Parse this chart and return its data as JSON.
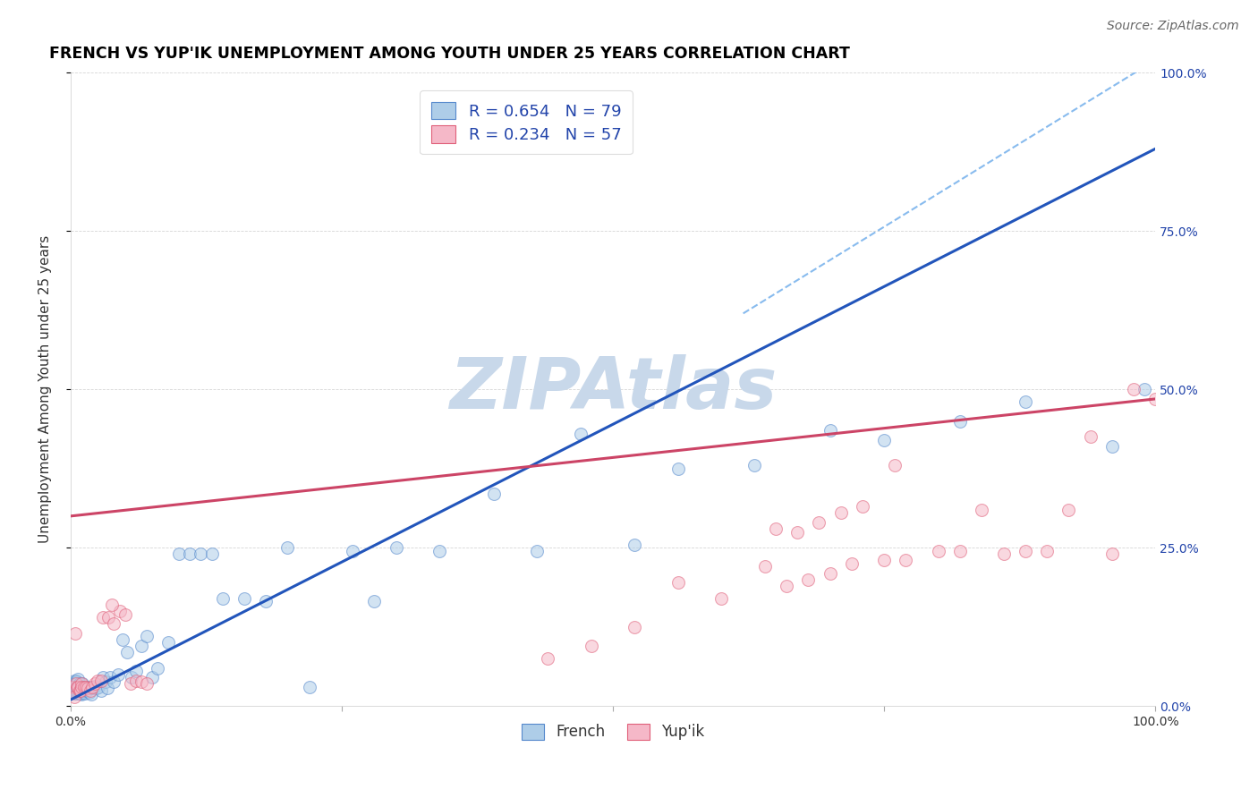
{
  "title": "FRENCH VS YUP'IK UNEMPLOYMENT AMONG YOUTH UNDER 25 YEARS CORRELATION CHART",
  "source": "Source: ZipAtlas.com",
  "ylabel": "Unemployment Among Youth under 25 years",
  "xlim": [
    0,
    1
  ],
  "ylim": [
    0,
    1
  ],
  "xticks": [
    0,
    0.25,
    0.5,
    0.75,
    1.0
  ],
  "yticks": [
    0,
    0.25,
    0.5,
    0.75,
    1.0
  ],
  "xticklabels_bottom": [
    "0.0%",
    "",
    "",
    "",
    "100.0%"
  ],
  "yticklabels_left": [
    "",
    "",
    "",
    "",
    ""
  ],
  "right_ytick_labels": [
    "0.0%",
    "25.0%",
    "50.0%",
    "75.0%",
    "100.0%"
  ],
  "right_ytick_pos": [
    0.0,
    0.25,
    0.5,
    0.75,
    1.0
  ],
  "blue_scatter_color": "#aecde8",
  "blue_scatter_edge": "#5588cc",
  "pink_scatter_color": "#f5b8c8",
  "pink_scatter_edge": "#e0607a",
  "blue_line_color": "#2255bb",
  "pink_line_color": "#cc4466",
  "dashed_line_color": "#88bbee",
  "watermark_color": "#c8d8ea",
  "legend_R_color": "#2244aa",
  "french_R": 0.654,
  "french_N": 79,
  "yupik_R": 0.234,
  "yupik_N": 57,
  "french_scatter_x": [
    0.001,
    0.002,
    0.002,
    0.003,
    0.003,
    0.003,
    0.004,
    0.004,
    0.004,
    0.005,
    0.005,
    0.005,
    0.006,
    0.006,
    0.006,
    0.007,
    0.007,
    0.007,
    0.008,
    0.008,
    0.009,
    0.009,
    0.01,
    0.01,
    0.011,
    0.011,
    0.012,
    0.013,
    0.014,
    0.015,
    0.016,
    0.017,
    0.018,
    0.019,
    0.02,
    0.022,
    0.024,
    0.026,
    0.028,
    0.03,
    0.032,
    0.034,
    0.036,
    0.04,
    0.044,
    0.048,
    0.052,
    0.056,
    0.06,
    0.065,
    0.07,
    0.075,
    0.08,
    0.09,
    0.1,
    0.11,
    0.12,
    0.13,
    0.14,
    0.16,
    0.18,
    0.2,
    0.22,
    0.26,
    0.28,
    0.3,
    0.34,
    0.39,
    0.43,
    0.47,
    0.52,
    0.56,
    0.63,
    0.7,
    0.75,
    0.82,
    0.88,
    0.96,
    0.99
  ],
  "french_scatter_y": [
    0.025,
    0.03,
    0.035,
    0.025,
    0.03,
    0.04,
    0.02,
    0.025,
    0.035,
    0.02,
    0.03,
    0.04,
    0.02,
    0.028,
    0.038,
    0.022,
    0.03,
    0.042,
    0.02,
    0.035,
    0.02,
    0.032,
    0.018,
    0.03,
    0.022,
    0.035,
    0.025,
    0.02,
    0.03,
    0.025,
    0.028,
    0.022,
    0.03,
    0.018,
    0.028,
    0.032,
    0.028,
    0.03,
    0.025,
    0.045,
    0.038,
    0.028,
    0.045,
    0.038,
    0.05,
    0.105,
    0.085,
    0.045,
    0.055,
    0.095,
    0.11,
    0.045,
    0.06,
    0.1,
    0.24,
    0.24,
    0.24,
    0.24,
    0.17,
    0.17,
    0.165,
    0.25,
    0.03,
    0.245,
    0.165,
    0.25,
    0.245,
    0.335,
    0.245,
    0.43,
    0.255,
    0.375,
    0.38,
    0.435,
    0.42,
    0.45,
    0.48,
    0.41,
    0.5
  ],
  "yupik_scatter_x": [
    0.002,
    0.003,
    0.004,
    0.005,
    0.006,
    0.007,
    0.008,
    0.009,
    0.01,
    0.01,
    0.012,
    0.014,
    0.016,
    0.018,
    0.02,
    0.022,
    0.025,
    0.028,
    0.03,
    0.035,
    0.04,
    0.045,
    0.05,
    0.055,
    0.06,
    0.065,
    0.07,
    0.038,
    0.44,
    0.48,
    0.52,
    0.56,
    0.6,
    0.64,
    0.66,
    0.68,
    0.7,
    0.72,
    0.75,
    0.77,
    0.8,
    0.82,
    0.84,
    0.86,
    0.88,
    0.9,
    0.92,
    0.94,
    0.96,
    0.98,
    1.0,
    0.65,
    0.67,
    0.69,
    0.71,
    0.73,
    0.76
  ],
  "yupik_scatter_y": [
    0.03,
    0.015,
    0.115,
    0.035,
    0.03,
    0.03,
    0.025,
    0.025,
    0.035,
    0.03,
    0.03,
    0.03,
    0.028,
    0.025,
    0.03,
    0.035,
    0.04,
    0.04,
    0.14,
    0.14,
    0.13,
    0.15,
    0.145,
    0.035,
    0.04,
    0.038,
    0.035,
    0.16,
    0.075,
    0.095,
    0.125,
    0.195,
    0.17,
    0.22,
    0.19,
    0.2,
    0.21,
    0.225,
    0.23,
    0.23,
    0.245,
    0.245,
    0.31,
    0.24,
    0.245,
    0.245,
    0.31,
    0.425,
    0.24,
    0.5,
    0.485,
    0.28,
    0.275,
    0.29,
    0.305,
    0.315,
    0.38
  ],
  "french_line_x": [
    0.0,
    1.0
  ],
  "french_line_y": [
    0.01,
    0.88
  ],
  "yupik_line_x": [
    0.0,
    1.0
  ],
  "yupik_line_y": [
    0.3,
    0.485
  ],
  "diagonal_line_x": [
    0.62,
    1.0
  ],
  "diagonal_line_y": [
    0.62,
    1.02
  ],
  "background_color": "#ffffff",
  "title_fontsize": 12.5,
  "axis_label_fontsize": 11,
  "tick_fontsize": 10,
  "source_fontsize": 10,
  "scatter_size": 100,
  "scatter_alpha": 0.55,
  "scatter_linewidth": 0.8
}
